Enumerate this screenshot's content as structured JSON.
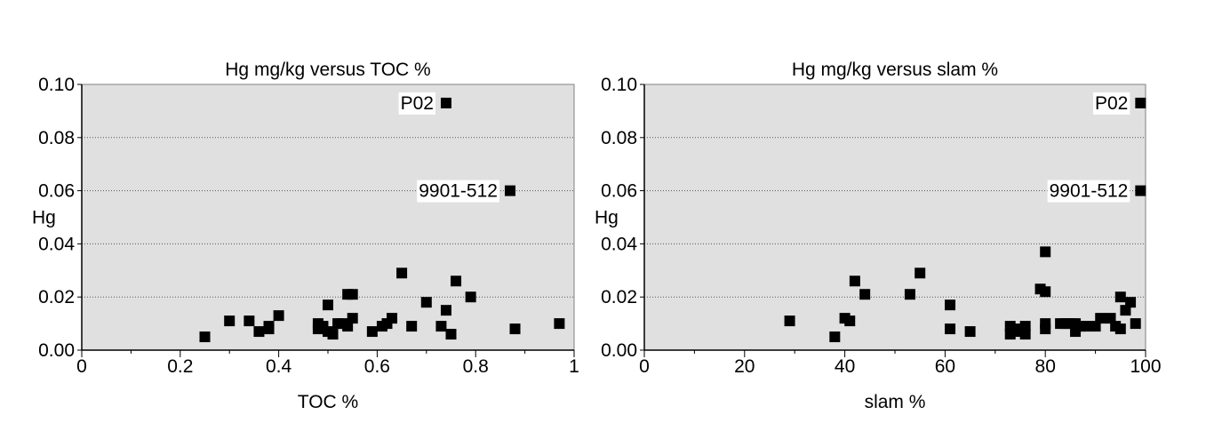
{
  "chart_data": [
    {
      "type": "scatter",
      "title": "Hg mg/kg versus TOC %",
      "xlabel": "TOC %",
      "ylabel": "Hg",
      "xlim": [
        0,
        1
      ],
      "ylim": [
        0,
        0.1
      ],
      "x_ticks": [
        "0",
        "0.2",
        "0.4",
        "0.6",
        "0.8",
        "1"
      ],
      "y_ticks": [
        "0.00",
        "0.02",
        "0.04",
        "0.06",
        "0.08",
        "0.10"
      ],
      "grid": "horizontal dotted",
      "background": "#e0e0e0",
      "marker_color": "#000000",
      "points": [
        {
          "x": 0.25,
          "y": 0.005
        },
        {
          "x": 0.3,
          "y": 0.011
        },
        {
          "x": 0.34,
          "y": 0.011
        },
        {
          "x": 0.36,
          "y": 0.007
        },
        {
          "x": 0.38,
          "y": 0.008
        },
        {
          "x": 0.38,
          "y": 0.009
        },
        {
          "x": 0.4,
          "y": 0.013
        },
        {
          "x": 0.48,
          "y": 0.01
        },
        {
          "x": 0.48,
          "y": 0.008
        },
        {
          "x": 0.49,
          "y": 0.009
        },
        {
          "x": 0.5,
          "y": 0.007
        },
        {
          "x": 0.5,
          "y": 0.017
        },
        {
          "x": 0.51,
          "y": 0.006
        },
        {
          "x": 0.52,
          "y": 0.01
        },
        {
          "x": 0.53,
          "y": 0.01
        },
        {
          "x": 0.54,
          "y": 0.021
        },
        {
          "x": 0.54,
          "y": 0.009
        },
        {
          "x": 0.55,
          "y": 0.012
        },
        {
          "x": 0.55,
          "y": 0.021
        },
        {
          "x": 0.59,
          "y": 0.007
        },
        {
          "x": 0.61,
          "y": 0.009
        },
        {
          "x": 0.62,
          "y": 0.01
        },
        {
          "x": 0.63,
          "y": 0.012
        },
        {
          "x": 0.65,
          "y": 0.029
        },
        {
          "x": 0.67,
          "y": 0.009
        },
        {
          "x": 0.7,
          "y": 0.018
        },
        {
          "x": 0.73,
          "y": 0.009
        },
        {
          "x": 0.74,
          "y": 0.015
        },
        {
          "x": 0.75,
          "y": 0.006
        },
        {
          "x": 0.76,
          "y": 0.026
        },
        {
          "x": 0.79,
          "y": 0.02
        },
        {
          "x": 0.88,
          "y": 0.008
        },
        {
          "x": 0.97,
          "y": 0.01
        },
        {
          "x": 0.74,
          "y": 0.093,
          "label": "P02"
        },
        {
          "x": 0.87,
          "y": 0.06,
          "label": "9901-512"
        }
      ]
    },
    {
      "type": "scatter",
      "title": "Hg mg/kg versus slam %",
      "xlabel": "slam %",
      "ylabel": "Hg",
      "xlim": [
        0,
        100
      ],
      "ylim": [
        0,
        0.1
      ],
      "x_ticks": [
        "0",
        "20",
        "40",
        "60",
        "80",
        "100"
      ],
      "y_ticks": [
        "0.00",
        "0.02",
        "0.04",
        "0.06",
        "0.08",
        "0.10"
      ],
      "grid": "horizontal dotted",
      "background": "#e0e0e0",
      "marker_color": "#000000",
      "points": [
        {
          "x": 29,
          "y": 0.011
        },
        {
          "x": 38,
          "y": 0.005
        },
        {
          "x": 40,
          "y": 0.012
        },
        {
          "x": 41,
          "y": 0.011
        },
        {
          "x": 42,
          "y": 0.026
        },
        {
          "x": 44,
          "y": 0.021
        },
        {
          "x": 53,
          "y": 0.021
        },
        {
          "x": 55,
          "y": 0.029
        },
        {
          "x": 61,
          "y": 0.017
        },
        {
          "x": 61,
          "y": 0.008
        },
        {
          "x": 65,
          "y": 0.007
        },
        {
          "x": 73,
          "y": 0.009
        },
        {
          "x": 73,
          "y": 0.006
        },
        {
          "x": 74,
          "y": 0.007
        },
        {
          "x": 75,
          "y": 0.008
        },
        {
          "x": 76,
          "y": 0.006
        },
        {
          "x": 76,
          "y": 0.009
        },
        {
          "x": 79,
          "y": 0.023
        },
        {
          "x": 80,
          "y": 0.037
        },
        {
          "x": 80,
          "y": 0.022
        },
        {
          "x": 80,
          "y": 0.01
        },
        {
          "x": 80,
          "y": 0.008
        },
        {
          "x": 83,
          "y": 0.01
        },
        {
          "x": 84,
          "y": 0.01
        },
        {
          "x": 85,
          "y": 0.01
        },
        {
          "x": 86,
          "y": 0.01
        },
        {
          "x": 86,
          "y": 0.007
        },
        {
          "x": 87,
          "y": 0.009
        },
        {
          "x": 88,
          "y": 0.009
        },
        {
          "x": 90,
          "y": 0.009
        },
        {
          "x": 91,
          "y": 0.012
        },
        {
          "x": 93,
          "y": 0.012
        },
        {
          "x": 94,
          "y": 0.009
        },
        {
          "x": 95,
          "y": 0.008
        },
        {
          "x": 95,
          "y": 0.02
        },
        {
          "x": 96,
          "y": 0.015
        },
        {
          "x": 97,
          "y": 0.018
        },
        {
          "x": 98,
          "y": 0.01
        },
        {
          "x": 99,
          "y": 0.093,
          "label": "P02"
        },
        {
          "x": 99,
          "y": 0.06,
          "label": "9901-512"
        }
      ]
    }
  ]
}
